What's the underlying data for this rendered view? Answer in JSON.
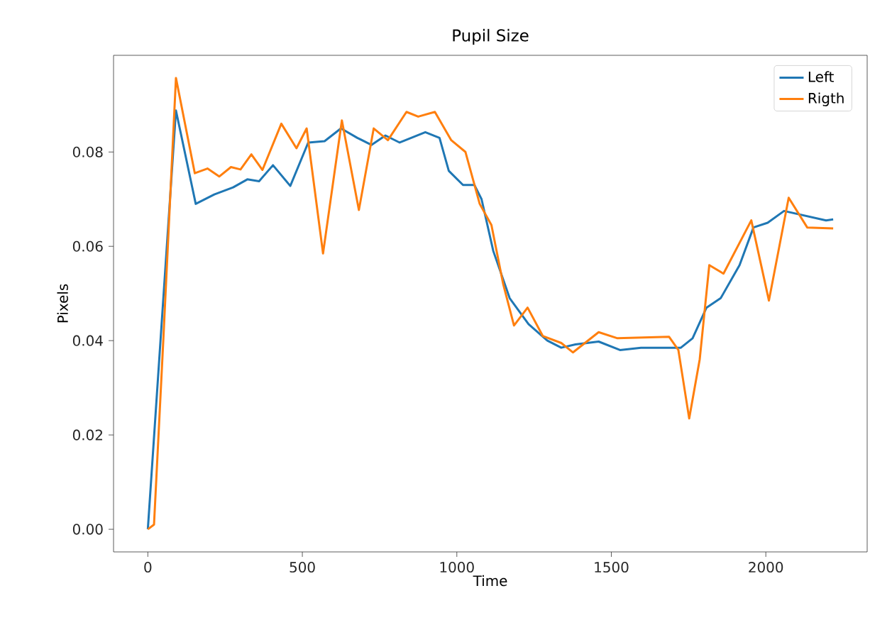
{
  "chart_data": {
    "type": "line",
    "title": "Pupil Size",
    "xlabel": "Time",
    "ylabel": "Pixels",
    "xlim": [
      -111,
      2328
    ],
    "ylim": [
      -0.0048,
      0.1005
    ],
    "xticks": [
      0,
      500,
      1000,
      1500,
      2000
    ],
    "yticks": [
      {
        "value": 0,
        "label": "0.00"
      },
      {
        "value": 0.02,
        "label": "0.02"
      },
      {
        "value": 0.04,
        "label": "0.04"
      },
      {
        "value": 0.06,
        "label": "0.06"
      },
      {
        "value": 0.08,
        "label": "0.08"
      }
    ],
    "legend": "top right",
    "grid": false,
    "marker": "none",
    "line_style": "solid",
    "series": [
      {
        "name": "Left",
        "color": "#1f77b4",
        "x": [
          0,
          91,
          155,
          215,
          276,
          322,
          360,
          405,
          461,
          519,
          572,
          625,
          678,
          724,
          769,
          815,
          898,
          944,
          974,
          1020,
          1057,
          1080,
          1118,
          1171,
          1232,
          1293,
          1338,
          1384,
          1459,
          1528,
          1596,
          1725,
          1763,
          1808,
          1854,
          1915,
          1960,
          2006,
          2059,
          2127,
          2195,
          2218
        ],
        "values": [
          0,
          0.0888,
          0.069,
          0.071,
          0.0725,
          0.0742,
          0.0738,
          0.0772,
          0.0728,
          0.082,
          0.0823,
          0.085,
          0.083,
          0.0815,
          0.0835,
          0.082,
          0.0842,
          0.083,
          0.076,
          0.073,
          0.073,
          0.07,
          0.059,
          0.049,
          0.0435,
          0.04,
          0.0385,
          0.0392,
          0.0398,
          0.038,
          0.0385,
          0.0385,
          0.0405,
          0.047,
          0.049,
          0.056,
          0.064,
          0.065,
          0.0675,
          0.0665,
          0.0655,
          0.0657
        ]
      },
      {
        "name": "Rigth",
        "color": "#ff7f0e",
        "x": [
          0,
          20,
          50,
          91,
          152,
          193,
          231,
          269,
          300,
          335,
          371,
          432,
          481,
          514,
          567,
          628,
          683,
          731,
          777,
          837,
          875,
          929,
          982,
          1028,
          1074,
          1112,
          1150,
          1185,
          1229,
          1278,
          1338,
          1376,
          1459,
          1520,
          1687,
          1717,
          1752,
          1786,
          1817,
          1863,
          1953,
          2010,
          2074,
          2134,
          2218
        ],
        "values": [
          0,
          0.001,
          0.04,
          0.0957,
          0.0755,
          0.0765,
          0.0748,
          0.0768,
          0.0763,
          0.0795,
          0.0762,
          0.086,
          0.0808,
          0.085,
          0.0585,
          0.0867,
          0.0677,
          0.085,
          0.0825,
          0.0885,
          0.0875,
          0.0885,
          0.0825,
          0.08,
          0.069,
          0.0645,
          0.052,
          0.0432,
          0.047,
          0.041,
          0.0395,
          0.0375,
          0.0418,
          0.0405,
          0.0408,
          0.038,
          0.0235,
          0.036,
          0.056,
          0.0542,
          0.0655,
          0.0485,
          0.0703,
          0.064,
          0.0638
        ]
      }
    ]
  }
}
